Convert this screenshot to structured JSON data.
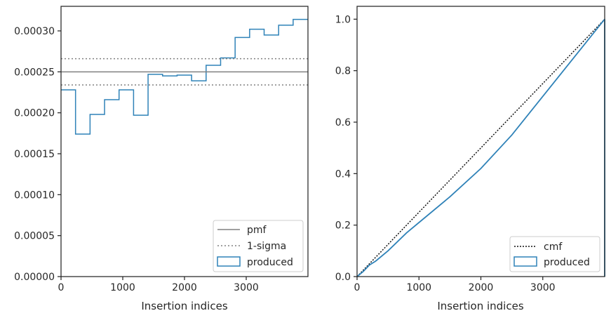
{
  "chart_data": [
    {
      "type": "step-histogram",
      "xlabel": "Insertion indices",
      "ylabel": "",
      "xlim": [
        0,
        4000
      ],
      "ylim": [
        0,
        0.00033
      ],
      "x_ticks": [
        0,
        1000,
        2000,
        3000
      ],
      "y_ticks": [
        0,
        5e-05,
        0.0001,
        0.00015,
        0.0002,
        0.00025,
        0.0003
      ],
      "x_tick_labels": [
        "0",
        "1000",
        "2000",
        "3000"
      ],
      "y_tick_labels": [
        "0.00000",
        "0.00005",
        "0.00010",
        "0.00015",
        "0.00020",
        "0.00025",
        "0.00030"
      ],
      "grid": false,
      "legend_position": "lower-right",
      "legend": [
        "pmf",
        "1-sigma",
        "produced"
      ],
      "series": [
        {
          "name": "produced",
          "style": "step",
          "bin_edges": [
            0,
            235,
            470,
            705,
            940,
            1175,
            1410,
            1645,
            1880,
            2115,
            2350,
            2585,
            2820,
            3055,
            3290,
            3525,
            3760,
            4000
          ],
          "values": [
            0.000228,
            0.000174,
            0.000198,
            0.000216,
            0.000228,
            0.000197,
            0.000247,
            0.000245,
            0.000246,
            0.000239,
            0.000258,
            0.000267,
            0.000292,
            0.000302,
            0.000295,
            0.000307,
            0.000314
          ]
        },
        {
          "name": "pmf",
          "style": "solid-hline",
          "y": 0.00025
        },
        {
          "name": "1-sigma",
          "style": "dotted-hline",
          "y": [
            0.000234,
            0.000266
          ]
        }
      ]
    },
    {
      "type": "line",
      "xlabel": "Insertion indices",
      "ylabel": "",
      "xlim": [
        0,
        4000
      ],
      "ylim": [
        0,
        1.05
      ],
      "x_ticks": [
        0,
        1000,
        2000,
        3000
      ],
      "y_ticks": [
        0,
        0.2,
        0.4,
        0.6,
        0.8,
        1.0
      ],
      "x_tick_labels": [
        "0",
        "1000",
        "2000",
        "3000"
      ],
      "y_tick_labels": [
        "0.0",
        "0.2",
        "0.4",
        "0.6",
        "0.8",
        "1.0"
      ],
      "grid": false,
      "legend_position": "lower-right",
      "legend": [
        "cmf",
        "produced"
      ],
      "series": [
        {
          "name": "cmf",
          "style": "dotted",
          "x": [
            0,
            4000
          ],
          "y": [
            0,
            1.0
          ]
        },
        {
          "name": "produced",
          "style": "solid",
          "x": [
            0,
            100,
            200,
            300,
            500,
            800,
            1000,
            1500,
            2000,
            2500,
            3000,
            3500,
            4000
          ],
          "y": [
            0,
            0.02,
            0.045,
            0.06,
            0.1,
            0.17,
            0.21,
            0.31,
            0.42,
            0.55,
            0.7,
            0.85,
            1.0
          ]
        }
      ]
    }
  ],
  "colors": {
    "produced": "#2f82b8",
    "pmf": "#808080",
    "sigma": "#808080",
    "cmf": "#111111",
    "axis": "#262626"
  }
}
